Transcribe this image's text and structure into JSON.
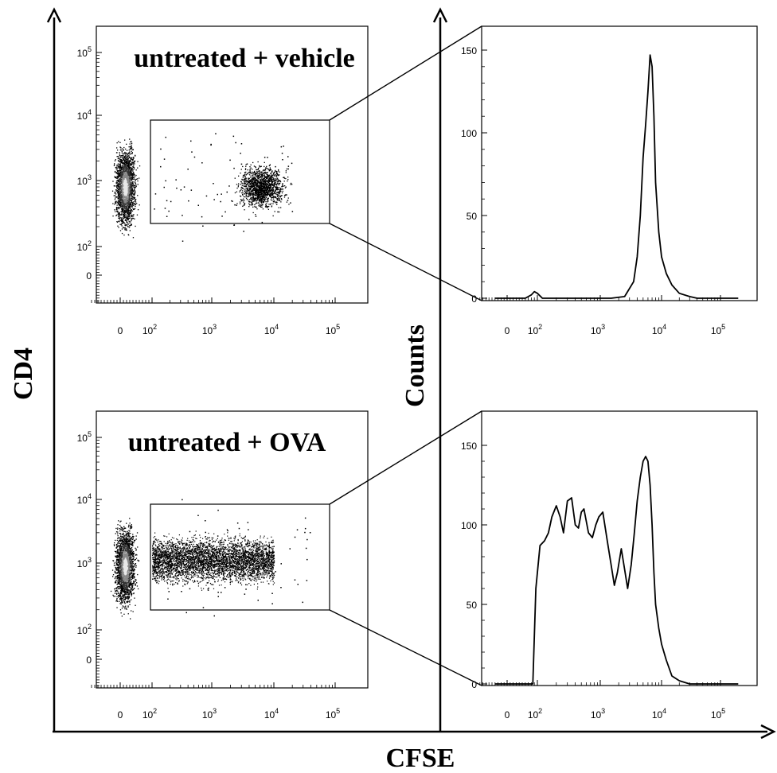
{
  "figure": {
    "x_axis_title": "CFSE",
    "y_axis_title": "CD4",
    "counts_axis_title": "Counts"
  },
  "chart_data": [
    {
      "type": "scatter",
      "panel_label": "untreated + vehicle",
      "xlabel": "CFSE",
      "ylabel": "CD4",
      "x_scale": "biexponential",
      "y_scale": "biexponential",
      "x_ticks": [
        {
          "base": "0",
          "exp": ""
        },
        {
          "base": "10",
          "exp": "2"
        },
        {
          "base": "10",
          "exp": "3"
        },
        {
          "base": "10",
          "exp": "4"
        },
        {
          "base": "10",
          "exp": "5"
        }
      ],
      "y_ticks": [
        {
          "base": "0",
          "exp": ""
        },
        {
          "base": "10",
          "exp": "2"
        },
        {
          "base": "10",
          "exp": "3"
        },
        {
          "base": "10",
          "exp": "4"
        },
        {
          "base": "10",
          "exp": "5"
        }
      ],
      "gate": {
        "x_range": [
          90,
          60000
        ],
        "y_range": [
          200,
          8000
        ]
      },
      "populations": [
        {
          "description": "CFSE-negative cluster",
          "cfse": 15,
          "cd4": 800,
          "density": "dense"
        },
        {
          "description": "undivided CFSE-high cluster",
          "cfse": 6500,
          "cd4": 800,
          "density": "dense"
        },
        {
          "description": "scattered events",
          "cfse_range": [
            100,
            20000
          ],
          "cd4": 800,
          "density": "sparse"
        }
      ]
    },
    {
      "type": "line",
      "xlabel": "CFSE",
      "ylabel": "Counts",
      "ylim": [
        0,
        160
      ],
      "y_ticks": [
        0,
        50,
        100,
        150
      ],
      "x_ticks": [
        {
          "base": "0",
          "exp": ""
        },
        {
          "base": "10",
          "exp": "2"
        },
        {
          "base": "10",
          "exp": "3"
        },
        {
          "base": "10",
          "exp": "4"
        },
        {
          "base": "10",
          "exp": "5"
        }
      ],
      "series": [
        {
          "x": [
            -40,
            0,
            60,
            80,
            90,
            100,
            120,
            200,
            600,
            1500,
            2500,
            3500,
            4000,
            4500,
            5000,
            5500,
            6000,
            6500,
            7000,
            7500,
            8000,
            9000,
            10000,
            12000,
            15000,
            20000,
            30000,
            40000,
            70000,
            200000
          ],
          "y": [
            0,
            0,
            0,
            2,
            4,
            3,
            0,
            0,
            0,
            0,
            1,
            10,
            25,
            50,
            85,
            105,
            125,
            147,
            140,
            110,
            70,
            40,
            25,
            15,
            8,
            3,
            1,
            0,
            0,
            0
          ]
        }
      ]
    },
    {
      "type": "scatter",
      "panel_label": "untreated + OVA",
      "xlabel": "CFSE",
      "ylabel": "CD4",
      "x_scale": "biexponential",
      "y_scale": "biexponential",
      "x_ticks": [
        {
          "base": "0",
          "exp": ""
        },
        {
          "base": "10",
          "exp": "2"
        },
        {
          "base": "10",
          "exp": "3"
        },
        {
          "base": "10",
          "exp": "4"
        },
        {
          "base": "10",
          "exp": "5"
        }
      ],
      "y_ticks": [
        {
          "base": "0",
          "exp": ""
        },
        {
          "base": "10",
          "exp": "2"
        },
        {
          "base": "10",
          "exp": "3"
        },
        {
          "base": "10",
          "exp": "4"
        },
        {
          "base": "10",
          "exp": "5"
        }
      ],
      "gate": {
        "x_range": [
          90,
          60000
        ],
        "y_range": [
          200,
          8000
        ]
      },
      "populations": [
        {
          "description": "CFSE-negative cluster",
          "cfse": 15,
          "cd4": 900,
          "density": "dense"
        },
        {
          "description": "divided cells smear",
          "cfse_range": [
            100,
            10000
          ],
          "cd4": 1100,
          "density": "dense"
        },
        {
          "description": "scattered events",
          "cfse_range": [
            100,
            40000
          ],
          "cd4": 1000,
          "density": "sparse"
        }
      ]
    },
    {
      "type": "line",
      "xlabel": "CFSE",
      "ylabel": "Counts",
      "ylim": [
        0,
        160
      ],
      "y_ticks": [
        0,
        50,
        100,
        150
      ],
      "x_ticks": [
        {
          "base": "0",
          "exp": ""
        },
        {
          "base": "10",
          "exp": "2"
        },
        {
          "base": "10",
          "exp": "3"
        },
        {
          "base": "10",
          "exp": "4"
        },
        {
          "base": "10",
          "exp": "5"
        }
      ],
      "series": [
        {
          "x": [
            -40,
            0,
            60,
            85,
            95,
            110,
            130,
            150,
            170,
            200,
            230,
            260,
            300,
            350,
            400,
            450,
            500,
            550,
            650,
            750,
            850,
            950,
            1100,
            1300,
            1500,
            1700,
            1900,
            2200,
            2500,
            2800,
            3200,
            3600,
            4000,
            4500,
            5000,
            5500,
            6000,
            6500,
            7000,
            7500,
            8000,
            9000,
            10000,
            12000,
            15000,
            20000,
            30000,
            40000,
            70000,
            200000
          ],
          "y": [
            0,
            0,
            0,
            0,
            60,
            87,
            90,
            95,
            105,
            112,
            105,
            95,
            115,
            117,
            100,
            98,
            108,
            110,
            95,
            92,
            100,
            105,
            108,
            90,
            75,
            62,
            70,
            85,
            72,
            60,
            75,
            95,
            115,
            130,
            140,
            143,
            140,
            125,
            100,
            70,
            50,
            35,
            25,
            15,
            5,
            2,
            0,
            0,
            0,
            0
          ]
        }
      ]
    }
  ]
}
